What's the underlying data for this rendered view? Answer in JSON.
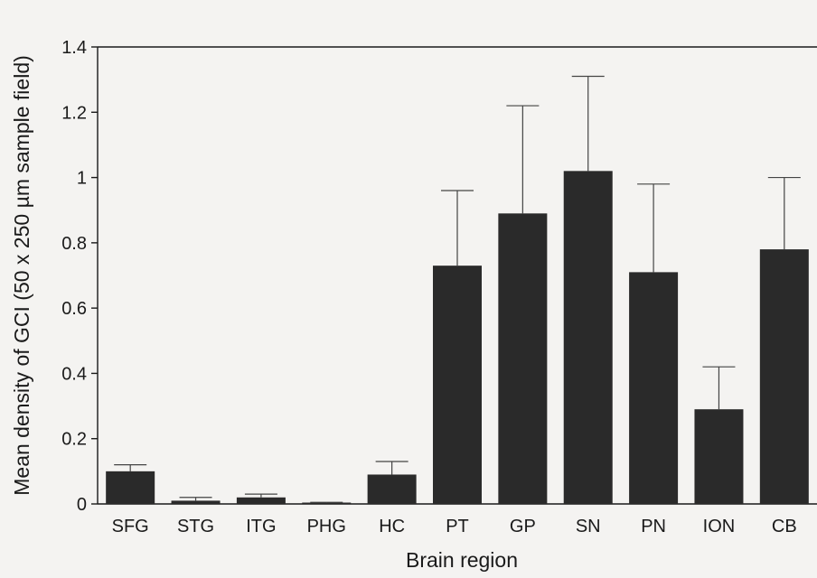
{
  "chart_data": {
    "type": "bar",
    "categories": [
      "SFG",
      "STG",
      "ITG",
      "PHG",
      "HC",
      "PT",
      "GP",
      "SN",
      "PN",
      "ION",
      "CB"
    ],
    "values": [
      0.1,
      0.01,
      0.02,
      0.003,
      0.09,
      0.73,
      0.89,
      1.02,
      0.71,
      0.29,
      0.78
    ],
    "errors_upper": [
      0.12,
      0.02,
      0.03,
      0.005,
      0.13,
      0.96,
      1.22,
      1.31,
      0.98,
      0.42,
      1.0
    ],
    "title": "",
    "xlabel": "Brain region",
    "ylabel": "Mean density of GCI (50 x 250 µm sample field)",
    "ylim": [
      0,
      1.4
    ],
    "yticks": [
      "0",
      "0.2",
      "0.4",
      "0.6",
      "0.8",
      "1",
      "1.2",
      "1.4"
    ],
    "grid": false,
    "bar_color": "#2a2a2a"
  }
}
